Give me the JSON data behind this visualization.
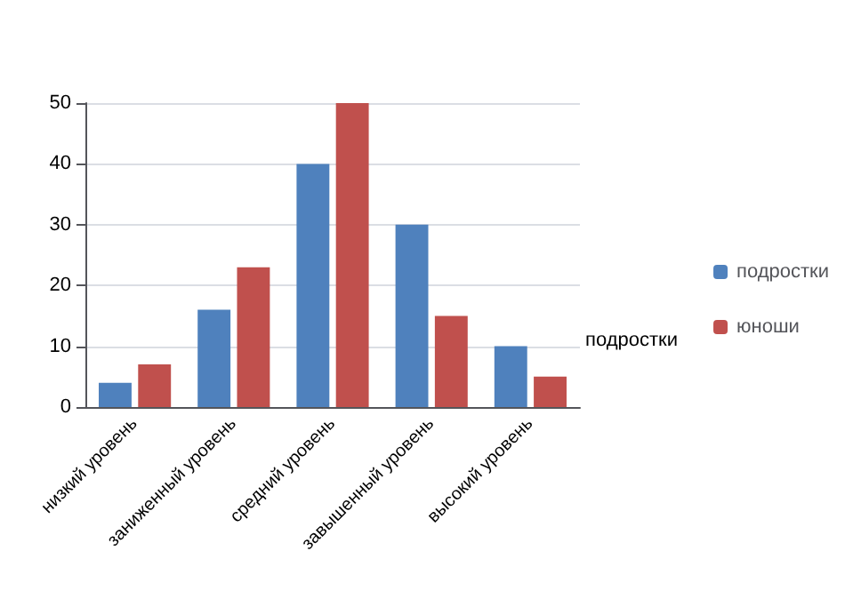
{
  "chart_data": {
    "type": "bar",
    "categories": [
      "низкий уровень",
      "заниженный уровень",
      "средний уровень",
      "завышенный уровень",
      "высокий уровень"
    ],
    "series": [
      {
        "name": "подростки",
        "color": "#4f81bd",
        "values": [
          4,
          16,
          40,
          30,
          10
        ]
      },
      {
        "name": "юноши",
        "color": "#c0504d",
        "values": [
          7,
          23,
          50,
          15,
          5
        ]
      }
    ],
    "ylim": [
      0,
      50
    ],
    "yticks": [
      0,
      10,
      20,
      30,
      40,
      50
    ],
    "grid": "y",
    "legend": "right",
    "annotations": [
      "подростки"
    ]
  }
}
